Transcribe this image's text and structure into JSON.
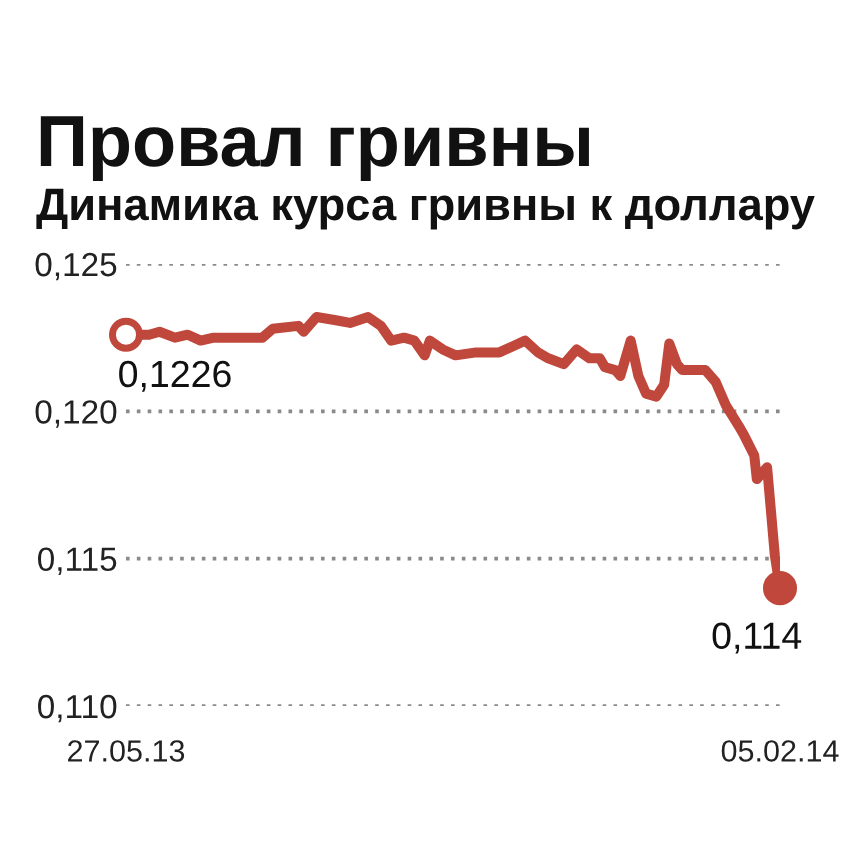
{
  "chart_data": {
    "type": "line",
    "title": "Провал гривны",
    "subtitle": "Динамика курса гривны к доллару",
    "series": [
      {
        "color": "#c0473b",
        "line_style": "solid",
        "marker": "none",
        "x": [
          "2013-05-27",
          "2013-06-05",
          "2013-06-09",
          "2013-06-15",
          "2013-06-20",
          "2013-06-25",
          "2013-06-30",
          "2013-07-06",
          "2013-07-13",
          "2013-07-19",
          "2013-07-23",
          "2013-08-02",
          "2013-08-04",
          "2013-08-09",
          "2013-08-16",
          "2013-08-22",
          "2013-08-29",
          "2013-09-03",
          "2013-09-07",
          "2013-09-12",
          "2013-09-16",
          "2013-09-20",
          "2013-09-22",
          "2013-09-27",
          "2013-10-02",
          "2013-10-10",
          "2013-10-19",
          "2013-10-29",
          "2013-11-03",
          "2013-11-07",
          "2013-11-13",
          "2013-11-18",
          "2013-11-23",
          "2013-11-27",
          "2013-11-29",
          "2013-12-03",
          "2013-12-05",
          "2013-12-09",
          "2013-12-12",
          "2013-12-15",
          "2013-12-19",
          "2013-12-22",
          "2013-12-24",
          "2013-12-27",
          "2013-12-29",
          "2014-01-07",
          "2014-01-11",
          "2014-01-15",
          "2014-01-20",
          "2014-01-22",
          "2014-01-26",
          "2014-01-27",
          "2014-01-31",
          "2014-02-03",
          "2014-02-05"
        ],
        "values": [
          0.1226,
          0.1226,
          0.1227,
          0.1225,
          0.1226,
          0.1224,
          0.1225,
          0.1225,
          0.1225,
          0.1225,
          0.1228,
          0.1229,
          0.1227,
          0.1232,
          0.1231,
          0.123,
          0.1232,
          0.1229,
          0.1224,
          0.1225,
          0.1224,
          0.1219,
          0.1224,
          0.1221,
          0.1219,
          0.122,
          0.122,
          0.1224,
          0.122,
          0.1218,
          0.1216,
          0.1221,
          0.1218,
          0.1218,
          0.1215,
          0.1214,
          0.1212,
          0.1224,
          0.1212,
          0.1206,
          0.1205,
          0.1209,
          0.1223,
          0.1216,
          0.1214,
          0.1214,
          0.121,
          0.1202,
          0.1195,
          0.1192,
          0.1185,
          0.1177,
          0.1181,
          0.1151,
          0.114
        ]
      },
      {
        "type": "scatter",
        "color": "#c0473b",
        "colors": [
          "#ffffff",
          "#c0473b"
        ],
        "marker": "circle",
        "x": [
          "2013-05-27",
          "2014-02-05"
        ],
        "values": [
          0.1226,
          0.114
        ]
      }
    ],
    "xlim": [
      "2013-05-27",
      "2014-02-05"
    ],
    "xticks": [
      {
        "value": "2013-05-27",
        "label": "27.05.13"
      },
      {
        "value": "2014-02-05",
        "label": "05.02.14"
      }
    ],
    "ylim": [
      0.11,
      0.125
    ],
    "yticks": [
      {
        "value": 0.11,
        "label": "0,110"
      },
      {
        "value": 0.115,
        "label": "0,115"
      },
      {
        "value": 0.12,
        "label": "0,120"
      },
      {
        "value": 0.125,
        "label": "0,125"
      }
    ],
    "grid": "y",
    "annotations": [
      {
        "text": "0,1226",
        "x": "2013-05-27",
        "y": 0.1226
      },
      {
        "text": "0,114",
        "x": "2014-02-05",
        "y": 0.114
      }
    ]
  }
}
